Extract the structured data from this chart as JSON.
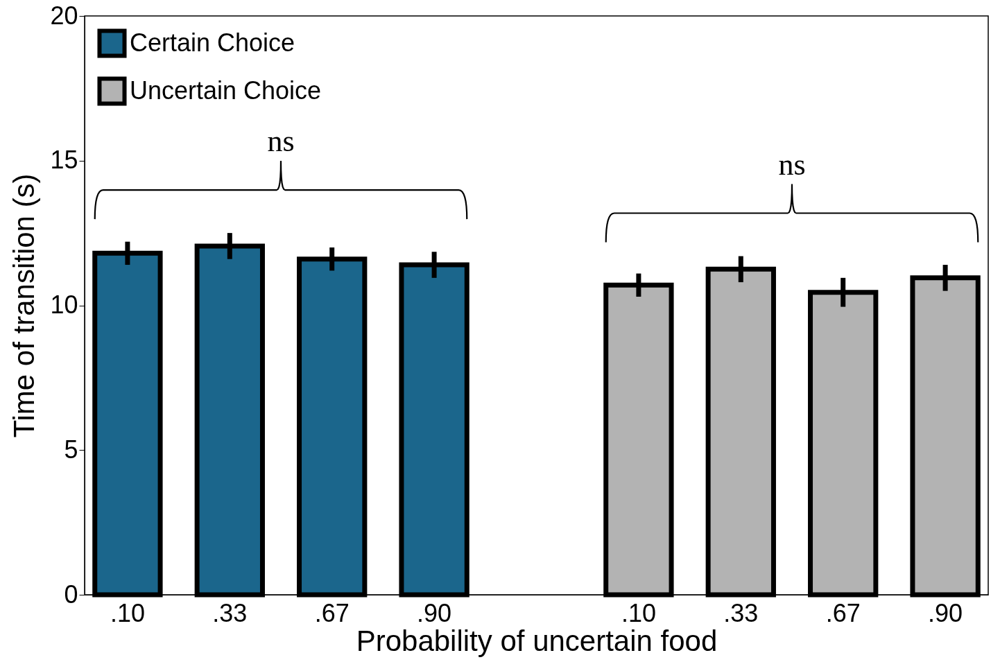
{
  "chart_data": {
    "type": "bar",
    "xlabel": "Probability of uncertain food",
    "ylabel": "Time of transition (s)",
    "categories": [
      ".10",
      ".33",
      ".67",
      ".90",
      null,
      ".10",
      ".33",
      ".67",
      ".90"
    ],
    "series": [
      {
        "name": "Certain Choice",
        "color": "#1b668c",
        "values": [
          11.8,
          12.05,
          11.6,
          11.4,
          null,
          null,
          null,
          null,
          null
        ],
        "errors": [
          0.4,
          0.45,
          0.4,
          0.45,
          null,
          null,
          null,
          null,
          null
        ]
      },
      {
        "name": "Uncertain Choice",
        "color": "#b3b3b3",
        "values": [
          null,
          null,
          null,
          null,
          null,
          10.7,
          11.25,
          10.45,
          10.95
        ],
        "errors": [
          null,
          null,
          null,
          null,
          null,
          0.4,
          0.45,
          0.5,
          0.45
        ]
      }
    ],
    "ylim": [
      0,
      20
    ],
    "yticks": [
      0,
      5,
      10,
      15,
      20
    ],
    "grid": false,
    "legend": "top left",
    "annotations": [
      "ns",
      "ns"
    ]
  }
}
